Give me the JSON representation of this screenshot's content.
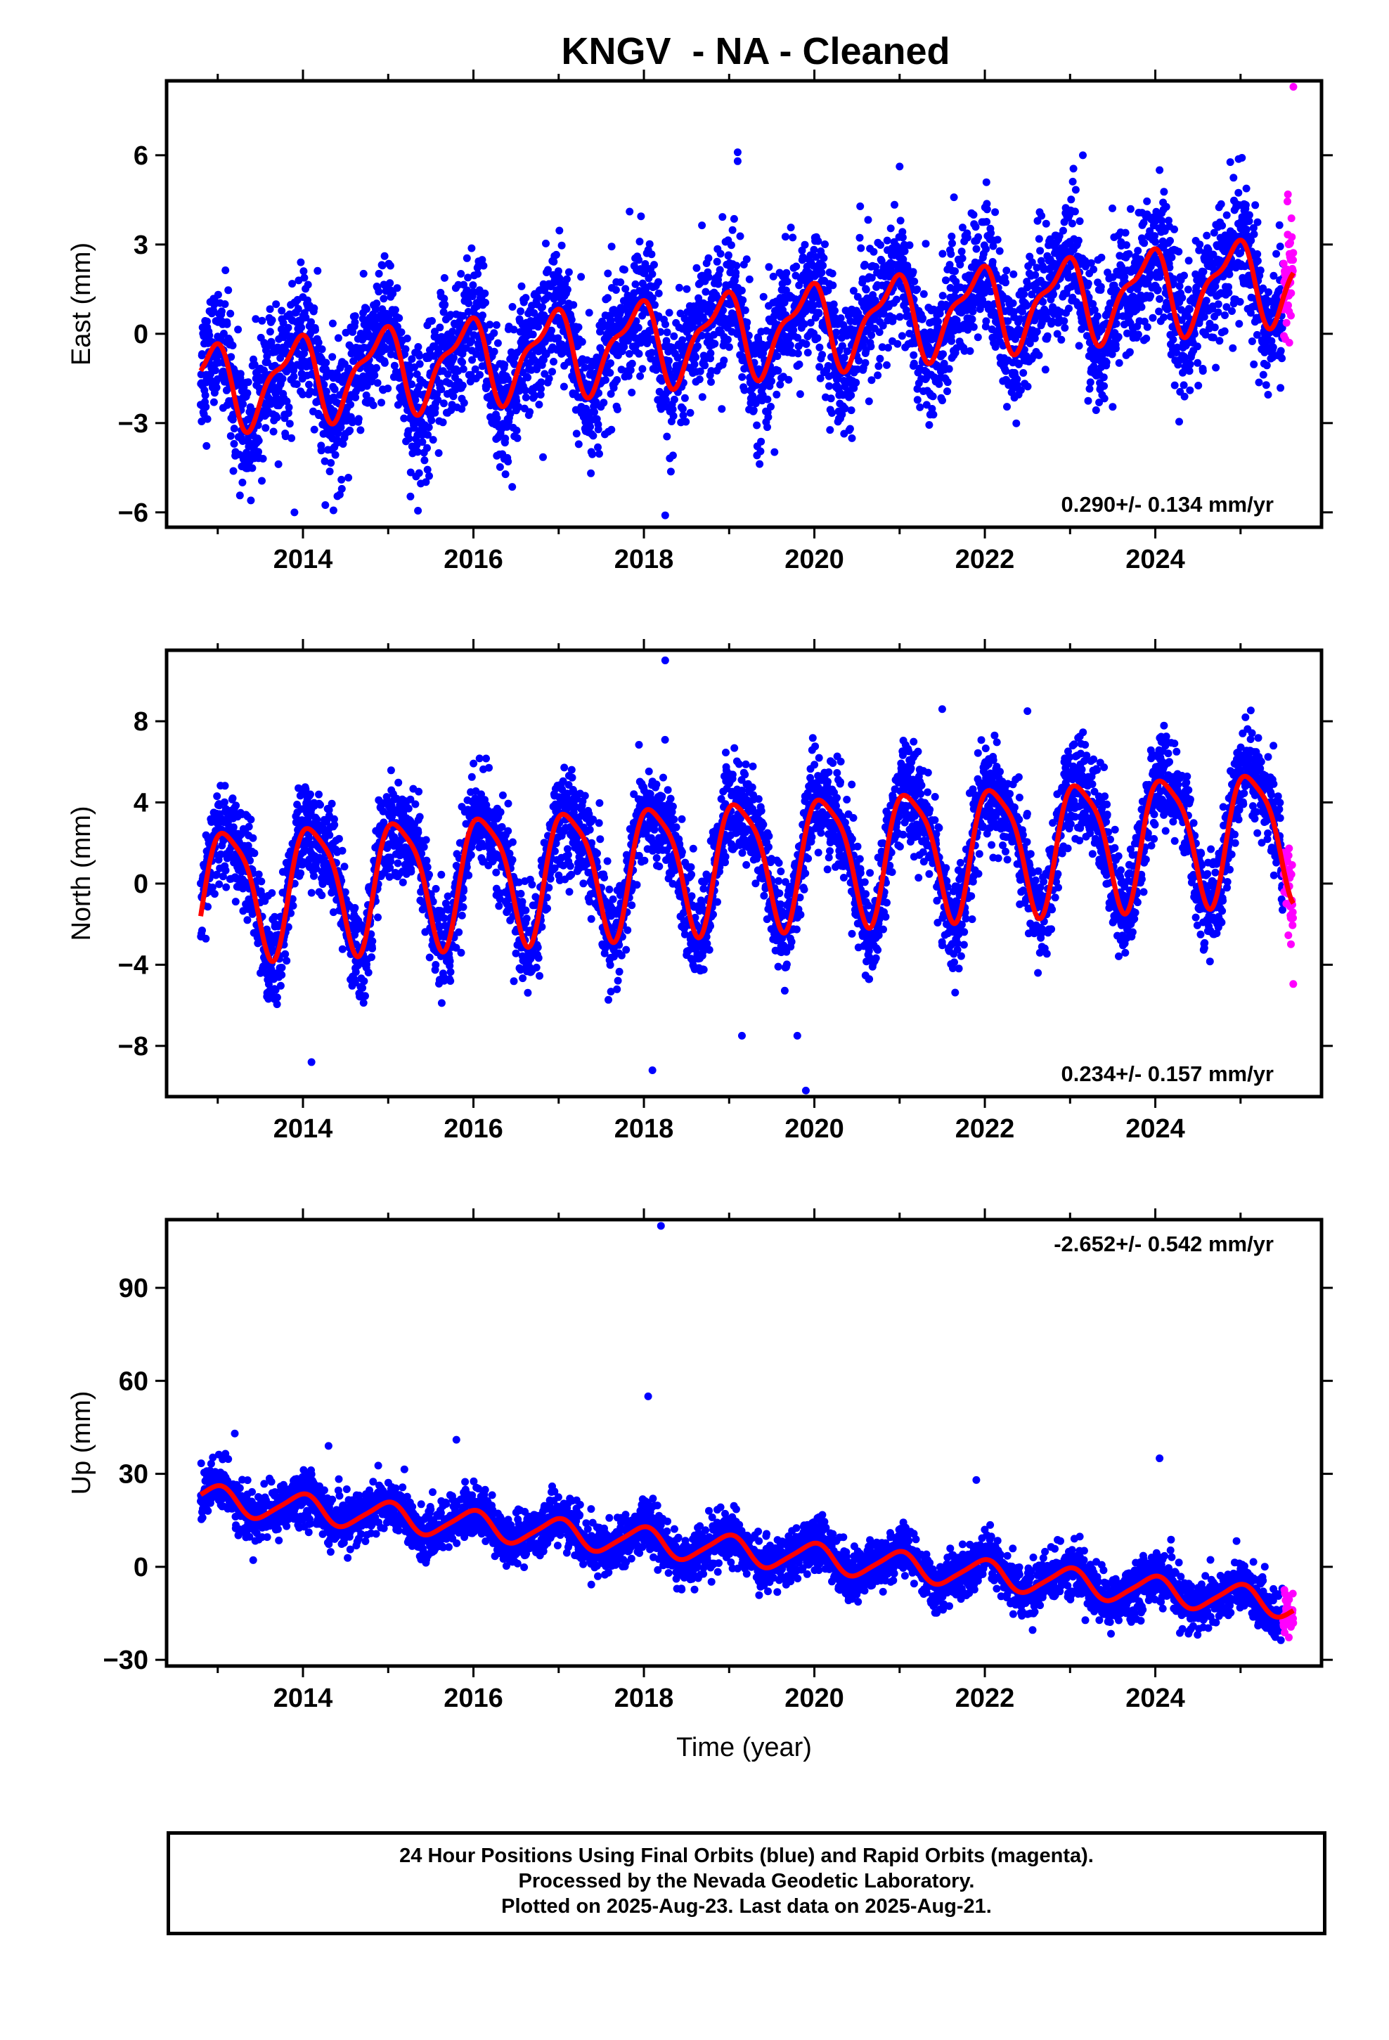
{
  "title": "KNGV  - NA - Cleaned",
  "footer": {
    "line1": "24 Hour Positions Using Final Orbits (blue) and Rapid Orbits (magenta).",
    "line2": "Processed by the Nevada Geodetic Laboratory.",
    "line3": "Plotted on 2025-Aug-23. Last data on 2025-Aug-21."
  },
  "colors": {
    "final_orbits": "#0000ff",
    "rapid_orbits": "#ff00ff",
    "model_fit": "#ff0000"
  },
  "chart_data": [
    {
      "type": "scatter",
      "name": "East",
      "ylabel": "East (mm)",
      "xlabel": "",
      "xlim": [
        2012.4,
        2025.95
      ],
      "ylim": [
        -6.5,
        8.5
      ],
      "yticks": [
        -6,
        -3,
        0,
        3,
        6
      ],
      "xticks": [
        2014,
        2016,
        2018,
        2020,
        2022,
        2024
      ],
      "x_range": [
        2012.8,
        2025.62
      ],
      "rapid_start": 2025.5,
      "rate_label": "0.290+/- 0.134 mm/yr",
      "rate_position": "bottom-right",
      "model": {
        "offset": -1.8,
        "rate": 0.29,
        "annual_amp": 1.3,
        "annual_phase": 2.2,
        "semiannual_amp": 0.5,
        "semiannual_phase": 0.8,
        "noise_sd": 1.1
      },
      "outliers": [
        [
          2018.25,
          -6.1
        ],
        [
          2019.1,
          6.1
        ],
        [
          2019.1,
          5.8
        ],
        [
          2023.15,
          6.0
        ],
        [
          2024.05,
          5.5
        ],
        [
          2013.9,
          -6.0
        ],
        [
          2025.62,
          8.3
        ]
      ]
    },
    {
      "type": "scatter",
      "name": "North",
      "ylabel": "North (mm)",
      "xlabel": "",
      "xlim": [
        2012.4,
        2025.95
      ],
      "ylim": [
        -10.5,
        11.5
      ],
      "yticks": [
        -8,
        -4,
        0,
        4,
        8
      ],
      "xticks": [
        2014,
        2016,
        2018,
        2020,
        2022,
        2024
      ],
      "x_range": [
        2012.8,
        2025.62
      ],
      "rapid_start": 2025.5,
      "rate_label": "0.234+/- 0.157 mm/yr",
      "rate_position": "bottom-right",
      "model": {
        "offset": -0.3,
        "rate": 0.234,
        "annual_amp": 3.1,
        "annual_phase": 0.8,
        "semiannual_amp": 0.7,
        "semiannual_phase": 2.6,
        "noise_sd": 1.2
      },
      "outliers": [
        [
          2018.25,
          11.0
        ],
        [
          2018.1,
          -9.2
        ],
        [
          2019.9,
          -10.2
        ],
        [
          2019.8,
          -7.5
        ],
        [
          2019.15,
          -7.5
        ],
        [
          2014.1,
          -8.8
        ],
        [
          2021.5,
          8.6
        ],
        [
          2022.5,
          8.5
        ]
      ]
    },
    {
      "type": "scatter",
      "name": "Up",
      "ylabel": "Up (mm)",
      "xlabel": "Time (year)",
      "xlim": [
        2012.4,
        2025.95
      ],
      "ylim": [
        -32,
        112
      ],
      "yticks": [
        -30,
        0,
        30,
        60,
        90
      ],
      "xticks": [
        2014,
        2016,
        2018,
        2020,
        2022,
        2024
      ],
      "x_range": [
        2012.8,
        2025.62
      ],
      "rapid_start": 2025.5,
      "rate_label": "-2.652+/- 0.542 mm/yr",
      "rate_position": "top-right",
      "model": {
        "offset": 22.0,
        "rate": -2.652,
        "annual_amp": 4.5,
        "annual_phase": 1.7,
        "semiannual_amp": 0.8,
        "semiannual_phase": 0.3,
        "noise_sd": 4.0
      },
      "outliers": [
        [
          2018.2,
          110.0
        ],
        [
          2018.05,
          55.0
        ],
        [
          2013.2,
          43.0
        ],
        [
          2015.8,
          41.0
        ],
        [
          2014.3,
          39.0
        ],
        [
          2024.05,
          35.0
        ],
        [
          2021.9,
          28.0
        ]
      ]
    }
  ]
}
